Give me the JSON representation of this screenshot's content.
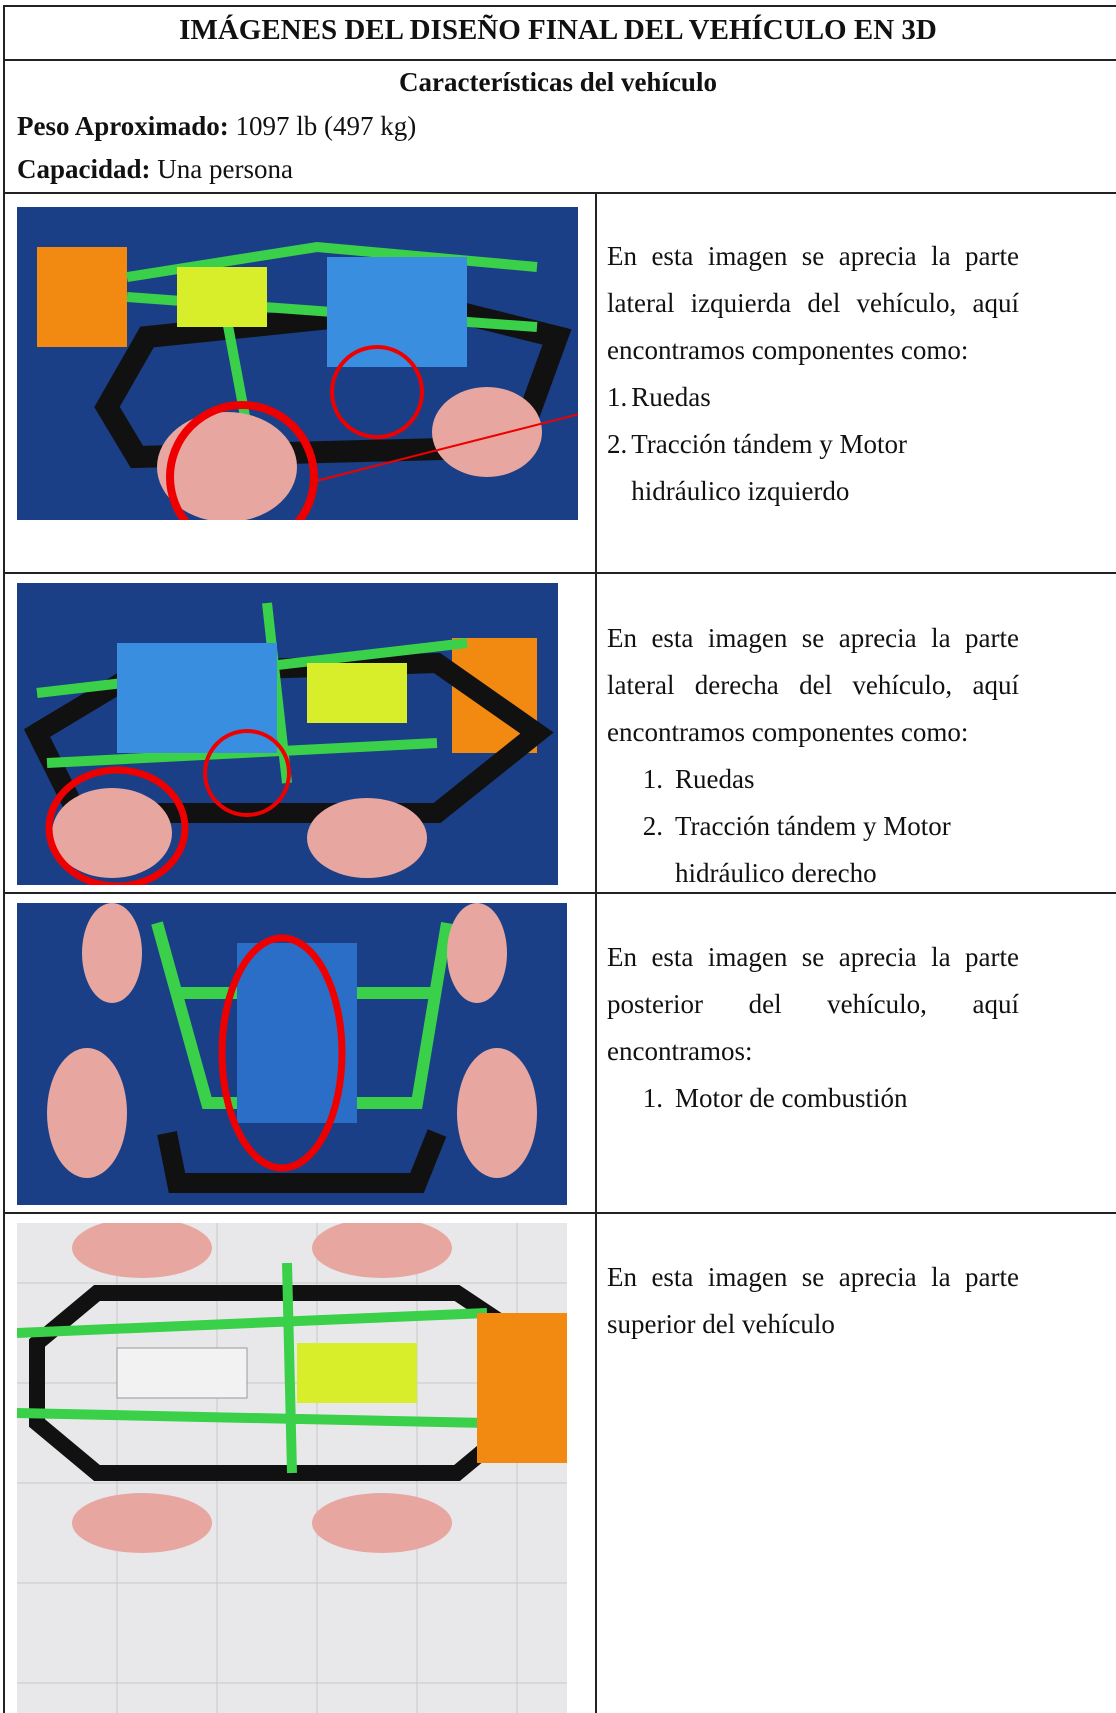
{
  "header": {
    "title": "IMÁGENES DEL DISEÑO FINAL DEL VEHÍCULO EN 3D",
    "subtitle": "Características del vehículo"
  },
  "specs": [
    {
      "label": "Peso Aproximado:",
      "value": "1097 lb (497 kg)"
    },
    {
      "label": "Capacidad:",
      "value": "Una persona"
    }
  ],
  "rows": [
    {
      "description": "En esta imagen se aprecia la parte lateral izquierda del vehículo, aquí encontramos componentes como:",
      "items": [
        {
          "number": "1.",
          "text": "Ruedas"
        },
        {
          "number": "2.",
          "text": "Tracción tándem y Motor hidráulico izquierdo"
        }
      ]
    },
    {
      "description": "En esta imagen se aprecia la parte lateral derecha del vehículo, aquí encontramos componentes como:",
      "items": [
        {
          "number": "1.",
          "text": "Ruedas"
        },
        {
          "number": "2.",
          "text": "Tracción tándem y Motor hidráulico derecho"
        }
      ]
    },
    {
      "description": "En esta imagen se aprecia la parte posterior del vehículo, aquí encontramos:",
      "items": [
        {
          "number": "1.",
          "text": "Motor de combustión"
        }
      ]
    },
    {
      "description": "En esta imagen se aprecia la parte superior del vehículo",
      "items": []
    }
  ]
}
